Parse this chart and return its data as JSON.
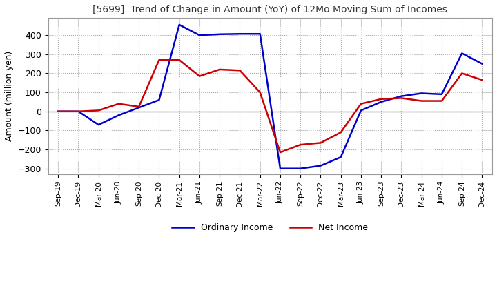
{
  "title": "[5699]  Trend of Change in Amount (YoY) of 12Mo Moving Sum of Incomes",
  "ylabel": "Amount (million yen)",
  "ylim": [
    -330,
    490
  ],
  "yticks": [
    -300,
    -200,
    -100,
    0,
    100,
    200,
    300,
    400
  ],
  "background_color": "#ffffff",
  "grid_color": "#aaaaaa",
  "ordinary_income_color": "#0000cc",
  "net_income_color": "#cc0000",
  "x_labels": [
    "Sep-19",
    "Dec-19",
    "Mar-20",
    "Jun-20",
    "Sep-20",
    "Dec-20",
    "Mar-21",
    "Jun-21",
    "Sep-21",
    "Dec-21",
    "Mar-22",
    "Jun-22",
    "Sep-22",
    "Dec-22",
    "Mar-23",
    "Jun-23",
    "Sep-23",
    "Dec-23",
    "Mar-24",
    "Jun-24",
    "Sep-24",
    "Dec-24"
  ],
  "ordinary_income": [
    0,
    0,
    -70,
    -20,
    20,
    60,
    455,
    400,
    405,
    407,
    407,
    -300,
    -300,
    -285,
    -240,
    5,
    50,
    80,
    95,
    90,
    305,
    250
  ],
  "net_income": [
    0,
    0,
    5,
    40,
    25,
    270,
    270,
    185,
    220,
    215,
    100,
    -215,
    -175,
    -165,
    -110,
    40,
    65,
    70,
    55,
    55,
    200,
    165
  ]
}
